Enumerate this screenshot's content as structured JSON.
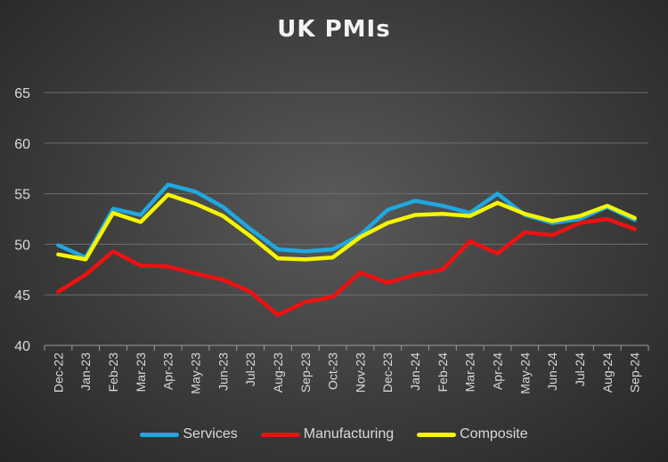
{
  "chart_data": {
    "type": "line",
    "title": "UK PMIs",
    "xlabel": "",
    "ylabel": "",
    "ylim": [
      40,
      65
    ],
    "yticks": [
      40,
      45,
      50,
      55,
      60,
      65
    ],
    "grid": true,
    "legend_position": "bottom",
    "categories": [
      "Dec-22",
      "Jan-23",
      "Feb-23",
      "Mar-23",
      "Apr-23",
      "May-23",
      "Jun-23",
      "Jul-23",
      "Aug-23",
      "Sep-23",
      "Oct-23",
      "Nov-23",
      "Dec-23",
      "Jan-24",
      "Feb-24",
      "Mar-24",
      "Apr-24",
      "May-24",
      "Jun-24",
      "Jul-24",
      "Aug-24",
      "Sep-24"
    ],
    "series": [
      {
        "name": "Services",
        "color": "#1fa8e0",
        "values": [
          49.9,
          48.7,
          53.5,
          52.9,
          55.9,
          55.2,
          53.7,
          51.5,
          49.5,
          49.3,
          49.5,
          50.9,
          53.4,
          54.3,
          53.8,
          53.1,
          55.0,
          52.9,
          52.1,
          52.5,
          53.7,
          52.4
        ]
      },
      {
        "name": "Manufacturing",
        "color": "#ee1111",
        "values": [
          45.3,
          47.0,
          49.3,
          47.9,
          47.8,
          47.1,
          46.5,
          45.3,
          43.0,
          44.3,
          44.8,
          47.2,
          46.2,
          47.0,
          47.5,
          50.3,
          49.1,
          51.2,
          50.9,
          52.1,
          52.5,
          51.5
        ]
      },
      {
        "name": "Composite",
        "color": "#f5f500",
        "values": [
          49.0,
          48.5,
          53.1,
          52.2,
          54.9,
          54.0,
          52.8,
          50.8,
          48.6,
          48.5,
          48.7,
          50.7,
          52.1,
          52.9,
          53.0,
          52.8,
          54.1,
          53.0,
          52.3,
          52.8,
          53.8,
          52.6
        ]
      }
    ]
  }
}
